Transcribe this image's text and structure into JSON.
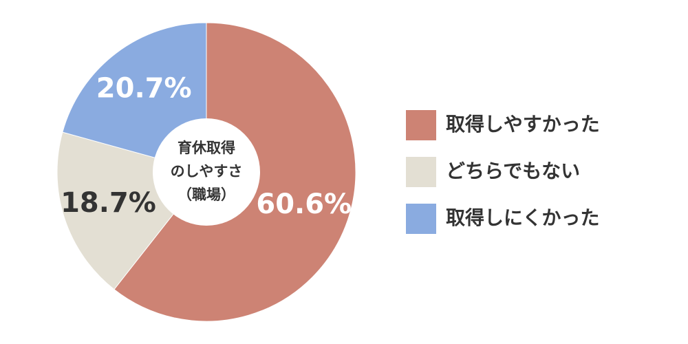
{
  "chart_data": {
    "type": "pie",
    "center_label": [
      "育休取得",
      "のしやすさ",
      "（職場）"
    ],
    "categories": [
      "取得しやすかった",
      "どちらでもない",
      "取得しにくかった"
    ],
    "values": [
      60.6,
      18.7,
      20.7
    ],
    "value_labels": [
      "60.6%",
      "18.7%",
      "20.7%"
    ],
    "colors": [
      "#cd8374",
      "#e3dfd3",
      "#8aabe0"
    ],
    "legend": "right"
  }
}
